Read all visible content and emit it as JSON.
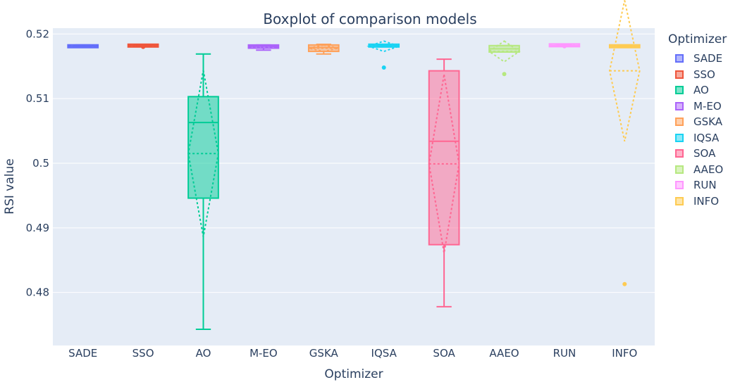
{
  "chart_data": {
    "type": "box",
    "title": "Boxplot of comparison models",
    "xlabel": "Optimizer",
    "ylabel": "RSI value",
    "legend_title": "Optimizer",
    "legend_position": "right",
    "grid": true,
    "ylim": [
      0.4718,
      0.5209
    ],
    "y_ticks": [
      0.48,
      0.49,
      0.5,
      0.51,
      0.52
    ],
    "y_tick_labels": [
      "0.48",
      "0.49",
      "0.5",
      "0.51",
      "0.52"
    ],
    "series": [
      {
        "name": "SADE",
        "color": "#636efa",
        "q1": 0.5179,
        "median": 0.5181,
        "q3": 0.5183,
        "lower": 0.5179,
        "upper": 0.5183,
        "mean": 0.5181,
        "sd": 0.0001,
        "outliers": []
      },
      {
        "name": "SSO",
        "color": "#ef553b",
        "q1": 0.5181,
        "median": 0.5182,
        "q3": 0.5183,
        "lower": 0.5181,
        "upper": 0.5183,
        "mean": 0.5182,
        "sd": 0.0001,
        "outliers": [
          0.518
        ]
      },
      {
        "name": "AO",
        "color": "#00cc96",
        "q1": 0.4946,
        "median": 0.5063,
        "q3": 0.5103,
        "lower": 0.4743,
        "upper": 0.5169,
        "mean": 0.5015,
        "sd": 0.0129,
        "outliers": []
      },
      {
        "name": "M-EO",
        "color": "#ab63fa",
        "q1": 0.5178,
        "median": 0.5181,
        "q3": 0.5183,
        "lower": 0.5175,
        "upper": 0.5183,
        "mean": 0.518,
        "sd": 0.0002,
        "outliers": []
      },
      {
        "name": "GSKA",
        "color": "#ffa15a",
        "q1": 0.5173,
        "median": 0.5179,
        "q3": 0.5183,
        "lower": 0.5169,
        "upper": 0.5184,
        "mean": 0.5178,
        "sd": 0.0005,
        "outliers": []
      },
      {
        "name": "IQSA",
        "color": "#19d3f3",
        "q1": 0.518,
        "median": 0.5182,
        "q3": 0.5184,
        "lower": 0.518,
        "upper": 0.5184,
        "mean": 0.5181,
        "sd": 0.0008,
        "outliers": [
          0.5148
        ]
      },
      {
        "name": "SOA",
        "color": "#ff6692",
        "q1": 0.4874,
        "median": 0.5034,
        "q3": 0.5143,
        "lower": 0.4778,
        "upper": 0.5161,
        "mean": 0.4999,
        "sd": 0.0138,
        "outliers": []
      },
      {
        "name": "AAEO",
        "color": "#b6e880",
        "q1": 0.5172,
        "median": 0.5177,
        "q3": 0.5182,
        "lower": 0.5172,
        "upper": 0.5182,
        "mean": 0.5173,
        "sd": 0.0016,
        "outliers": [
          0.5138
        ]
      },
      {
        "name": "RUN",
        "color": "#ff97ff",
        "q1": 0.5182,
        "median": 0.5182,
        "q3": 0.5183,
        "lower": 0.5182,
        "upper": 0.5183,
        "mean": 0.5182,
        "sd": 0.0001,
        "outliers": [
          0.5181
        ]
      },
      {
        "name": "INFO",
        "color": "#fecb52",
        "q1": 0.5179,
        "median": 0.5181,
        "q3": 0.5183,
        "lower": 0.5179,
        "upper": 0.5183,
        "mean": 0.5143,
        "sd": 0.0109,
        "outliers": [
          0.4813
        ]
      }
    ]
  }
}
